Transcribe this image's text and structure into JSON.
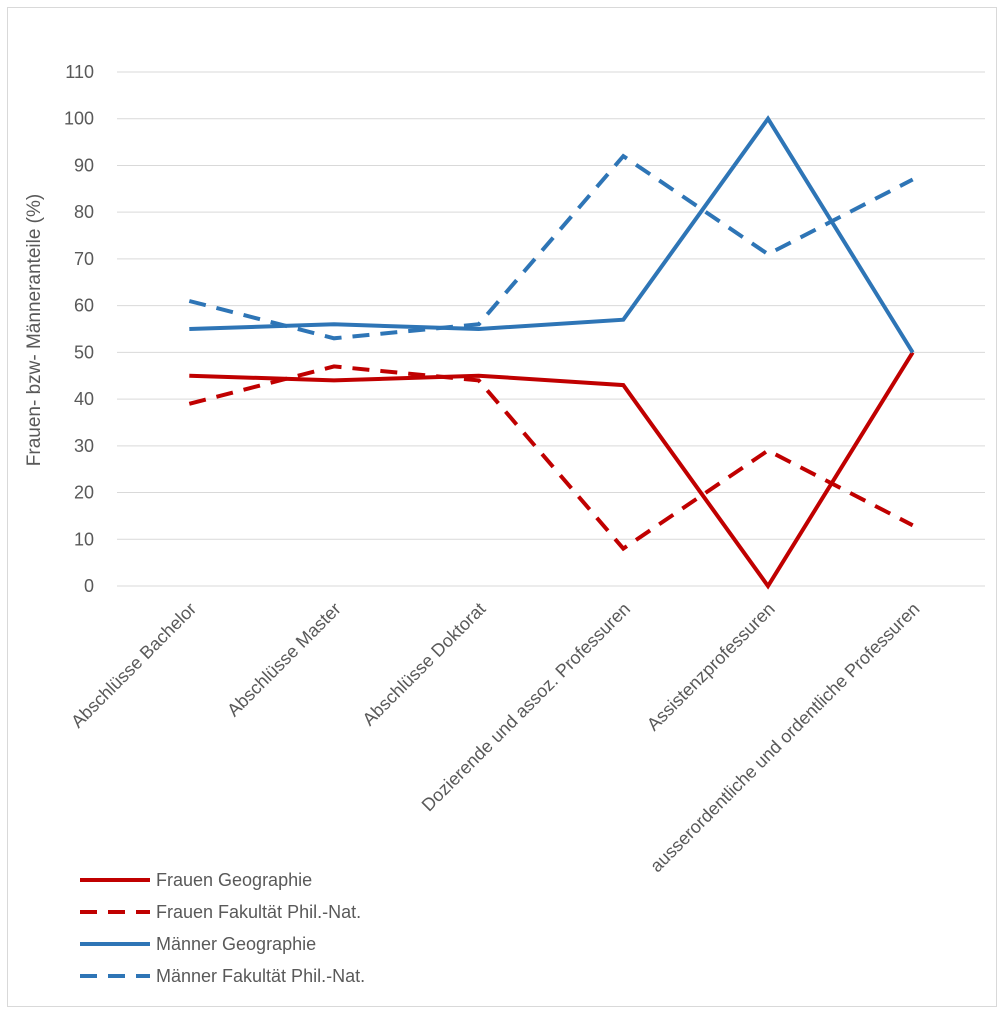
{
  "chart_data": {
    "type": "line",
    "title": "",
    "xlabel": "",
    "ylabel": "Frauen- bzw- Männeranteile (%)",
    "ylim": [
      0,
      110
    ],
    "ytick_step": 10,
    "grid": true,
    "legend_position": "bottom-left",
    "categories": [
      "Abschlüsse Bachelor",
      "Abschlüsse Master",
      "Abschlüsse Doktorat",
      "Dozierende und assoz. Professuren",
      "Assistenzprofessuren",
      "ausserordentliche und ordentliche Professuren"
    ],
    "series": [
      {
        "name": "Frauen Geographie",
        "values": [
          45,
          44,
          45,
          43,
          0,
          50
        ],
        "color": "#c00000",
        "dashed": false
      },
      {
        "name": "Frauen Fakultät Phil.-Nat.",
        "values": [
          39,
          47,
          44,
          8,
          29,
          13
        ],
        "color": "#c00000",
        "dashed": true
      },
      {
        "name": "Männer Geographie",
        "values": [
          55,
          56,
          55,
          57,
          100,
          50
        ],
        "color": "#2e75b6",
        "dashed": false
      },
      {
        "name": "Männer Fakultät Phil.-Nat.",
        "values": [
          61,
          53,
          56,
          92,
          71,
          87
        ],
        "color": "#2e75b6",
        "dashed": true
      }
    ]
  }
}
